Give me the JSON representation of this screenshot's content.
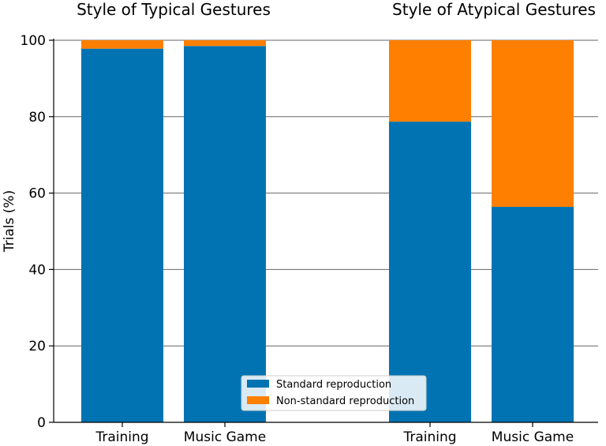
{
  "chart_data": {
    "type": "bar",
    "stacked": true,
    "ylabel": "Trials (%)",
    "ylim": [
      0,
      100
    ],
    "yticks": [
      0,
      20,
      40,
      60,
      80,
      100
    ],
    "grid": "horizontal",
    "legend": {
      "placement": "bottom-center",
      "entries": [
        "Standard reproduction",
        "Non-standard reproduction"
      ]
    },
    "colors": {
      "standard": "#0173b2",
      "non_standard": "#ff8000"
    },
    "groups": [
      {
        "title": "Style of Typical Gestures",
        "categories": [
          "Training",
          "Music Game"
        ],
        "series": [
          {
            "name": "Standard reproduction",
            "values": [
              97.8,
              98.5
            ]
          },
          {
            "name": "Non-standard reproduction",
            "values": [
              2.2,
              1.5
            ]
          }
        ]
      },
      {
        "title": "Style of Atypical Gestures",
        "categories": [
          "Training",
          "Music Game"
        ],
        "series": [
          {
            "name": "Standard reproduction",
            "values": [
              78.7,
              56.4
            ]
          },
          {
            "name": "Non-standard reproduction",
            "values": [
              21.3,
              43.6
            ]
          }
        ]
      }
    ]
  }
}
